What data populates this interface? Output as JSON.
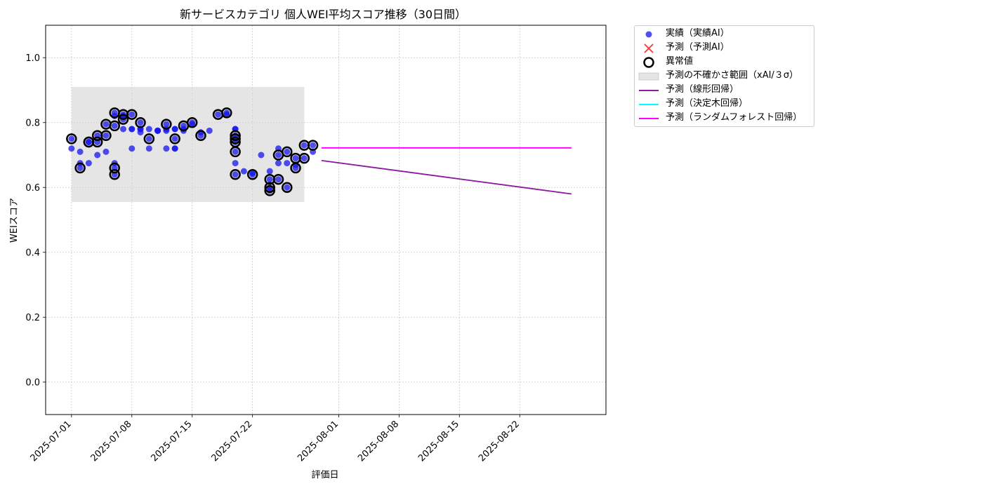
{
  "chart_data": {
    "type": "scatter",
    "title": "新サービスカテゴリ 個人WEI平均スコア推移（30日間）",
    "xlabel": "評価日",
    "ylabel": "WEIスコア",
    "xlim": [
      "2025-06-28",
      "2025-09-01"
    ],
    "ylim": [
      -0.1,
      1.1
    ],
    "grid": true,
    "x_ticks": [
      "2025-07-01",
      "2025-07-08",
      "2025-07-15",
      "2025-07-22",
      "2025-08-01",
      "2025-08-08",
      "2025-08-15",
      "2025-08-22"
    ],
    "y_ticks": [
      "0.0",
      "0.2",
      "0.4",
      "0.6",
      "0.8",
      "1.0"
    ],
    "legend_position": "outside-top-right",
    "series": [
      {
        "name": "実績（実績AI）",
        "kind": "scatter",
        "color": "#1414ee",
        "points": [
          [
            "2025-07-01",
            0.75
          ],
          [
            "2025-07-01",
            0.72
          ],
          [
            "2025-07-02",
            0.66
          ],
          [
            "2025-07-02",
            0.71
          ],
          [
            "2025-07-02",
            0.675
          ],
          [
            "2025-07-03",
            0.74
          ],
          [
            "2025-07-03",
            0.74
          ],
          [
            "2025-07-03",
            0.675
          ],
          [
            "2025-07-04",
            0.7
          ],
          [
            "2025-07-04",
            0.76
          ],
          [
            "2025-07-04",
            0.74
          ],
          [
            "2025-07-05",
            0.71
          ],
          [
            "2025-07-05",
            0.76
          ],
          [
            "2025-07-05",
            0.795
          ],
          [
            "2025-07-06",
            0.64
          ],
          [
            "2025-07-06",
            0.66
          ],
          [
            "2025-07-06",
            0.675
          ],
          [
            "2025-07-06",
            0.79
          ],
          [
            "2025-07-06",
            0.83
          ],
          [
            "2025-07-06",
            0.82
          ],
          [
            "2025-07-07",
            0.78
          ],
          [
            "2025-07-07",
            0.82
          ],
          [
            "2025-07-07",
            0.825
          ],
          [
            "2025-07-07",
            0.81
          ],
          [
            "2025-07-08",
            0.825
          ],
          [
            "2025-07-08",
            0.78
          ],
          [
            "2025-07-08",
            0.72
          ],
          [
            "2025-07-08",
            0.78
          ],
          [
            "2025-07-09",
            0.8
          ],
          [
            "2025-07-09",
            0.78
          ],
          [
            "2025-07-09",
            0.77
          ],
          [
            "2025-07-09",
            0.78
          ],
          [
            "2025-07-10",
            0.78
          ],
          [
            "2025-07-10",
            0.75
          ],
          [
            "2025-07-10",
            0.72
          ],
          [
            "2025-07-11",
            0.775
          ],
          [
            "2025-07-11",
            0.775
          ],
          [
            "2025-07-11",
            0.775
          ],
          [
            "2025-07-12",
            0.78
          ],
          [
            "2025-07-12",
            0.795
          ],
          [
            "2025-07-12",
            0.72
          ],
          [
            "2025-07-12",
            0.775
          ],
          [
            "2025-07-13",
            0.78
          ],
          [
            "2025-07-13",
            0.72
          ],
          [
            "2025-07-13",
            0.72
          ],
          [
            "2025-07-13",
            0.75
          ],
          [
            "2025-07-13",
            0.78
          ],
          [
            "2025-07-14",
            0.78
          ],
          [
            "2025-07-14",
            0.79
          ],
          [
            "2025-07-14",
            0.775
          ],
          [
            "2025-07-15",
            0.8
          ],
          [
            "2025-07-15",
            0.795
          ],
          [
            "2025-07-16",
            0.77
          ],
          [
            "2025-07-16",
            0.76
          ],
          [
            "2025-07-17",
            0.775
          ],
          [
            "2025-07-18",
            0.825
          ],
          [
            "2025-07-19",
            0.83
          ],
          [
            "2025-07-19",
            0.825
          ],
          [
            "2025-07-20",
            0.78
          ],
          [
            "2025-07-20",
            0.76
          ],
          [
            "2025-07-20",
            0.74
          ],
          [
            "2025-07-20",
            0.71
          ],
          [
            "2025-07-20",
            0.78
          ],
          [
            "2025-07-20",
            0.675
          ],
          [
            "2025-07-20",
            0.64
          ],
          [
            "2025-07-20",
            0.75
          ],
          [
            "2025-07-21",
            0.65
          ],
          [
            "2025-07-22",
            0.64
          ],
          [
            "2025-07-22",
            0.645
          ],
          [
            "2025-07-23",
            0.7
          ],
          [
            "2025-07-24",
            0.59
          ],
          [
            "2025-07-24",
            0.6
          ],
          [
            "2025-07-24",
            0.625
          ],
          [
            "2025-07-24",
            0.65
          ],
          [
            "2025-07-25",
            0.625
          ],
          [
            "2025-07-25",
            0.675
          ],
          [
            "2025-07-25",
            0.7
          ],
          [
            "2025-07-25",
            0.72
          ],
          [
            "2025-07-26",
            0.6
          ],
          [
            "2025-07-26",
            0.675
          ],
          [
            "2025-07-26",
            0.71
          ],
          [
            "2025-07-27",
            0.66
          ],
          [
            "2025-07-27",
            0.69
          ],
          [
            "2025-07-27",
            0.67
          ],
          [
            "2025-07-28",
            0.69
          ],
          [
            "2025-07-28",
            0.73
          ],
          [
            "2025-07-29",
            0.71
          ],
          [
            "2025-07-29",
            0.73
          ]
        ]
      },
      {
        "name": "予測（予測AI）",
        "kind": "scatter-x",
        "color": "#ff0000",
        "points": []
      },
      {
        "name": "異常値",
        "kind": "outlier-ring",
        "color": "#000000",
        "points": [
          [
            "2025-07-01",
            0.75
          ],
          [
            "2025-07-02",
            0.66
          ],
          [
            "2025-07-03",
            0.74
          ],
          [
            "2025-07-03",
            0.74
          ],
          [
            "2025-07-04",
            0.76
          ],
          [
            "2025-07-04",
            0.74
          ],
          [
            "2025-07-05",
            0.76
          ],
          [
            "2025-07-05",
            0.795
          ],
          [
            "2025-07-06",
            0.64
          ],
          [
            "2025-07-06",
            0.66
          ],
          [
            "2025-07-06",
            0.79
          ],
          [
            "2025-07-06",
            0.83
          ],
          [
            "2025-07-07",
            0.825
          ],
          [
            "2025-07-07",
            0.81
          ],
          [
            "2025-07-08",
            0.825
          ],
          [
            "2025-07-09",
            0.8
          ],
          [
            "2025-07-10",
            0.75
          ],
          [
            "2025-07-12",
            0.795
          ],
          [
            "2025-07-13",
            0.75
          ],
          [
            "2025-07-14",
            0.79
          ],
          [
            "2025-07-15",
            0.8
          ],
          [
            "2025-07-16",
            0.76
          ],
          [
            "2025-07-18",
            0.825
          ],
          [
            "2025-07-19",
            0.83
          ],
          [
            "2025-07-20",
            0.76
          ],
          [
            "2025-07-20",
            0.74
          ],
          [
            "2025-07-20",
            0.71
          ],
          [
            "2025-07-20",
            0.64
          ],
          [
            "2025-07-20",
            0.75
          ],
          [
            "2025-07-22",
            0.64
          ],
          [
            "2025-07-24",
            0.59
          ],
          [
            "2025-07-24",
            0.6
          ],
          [
            "2025-07-24",
            0.625
          ],
          [
            "2025-07-25",
            0.625
          ],
          [
            "2025-07-25",
            0.7
          ],
          [
            "2025-07-26",
            0.6
          ],
          [
            "2025-07-26",
            0.71
          ],
          [
            "2025-07-27",
            0.66
          ],
          [
            "2025-07-27",
            0.69
          ],
          [
            "2025-07-28",
            0.69
          ],
          [
            "2025-07-28",
            0.73
          ],
          [
            "2025-07-29",
            0.73
          ]
        ]
      },
      {
        "name": "予測の不確かさ範囲（xAI/３σ）",
        "kind": "band",
        "color": "#d3d3d3",
        "x_range": [
          "2025-07-01",
          "2025-07-28"
        ],
        "y_range": [
          0.555,
          0.91
        ]
      },
      {
        "name": "予測（線形回帰）",
        "kind": "line",
        "color": "#8b1a9e",
        "points": [
          [
            "2025-07-30",
            0.683
          ],
          [
            "2025-08-28",
            0.58
          ]
        ]
      },
      {
        "name": "予測（決定木回帰）",
        "kind": "line",
        "color": "#00ffff",
        "points": [
          [
            "2025-07-30",
            0.722
          ],
          [
            "2025-08-28",
            0.722
          ]
        ]
      },
      {
        "name": "予測（ランダムフォレスト回帰）",
        "kind": "line",
        "color": "#ff00ff",
        "points": [
          [
            "2025-07-30",
            0.722
          ],
          [
            "2025-08-28",
            0.722
          ]
        ]
      }
    ]
  }
}
